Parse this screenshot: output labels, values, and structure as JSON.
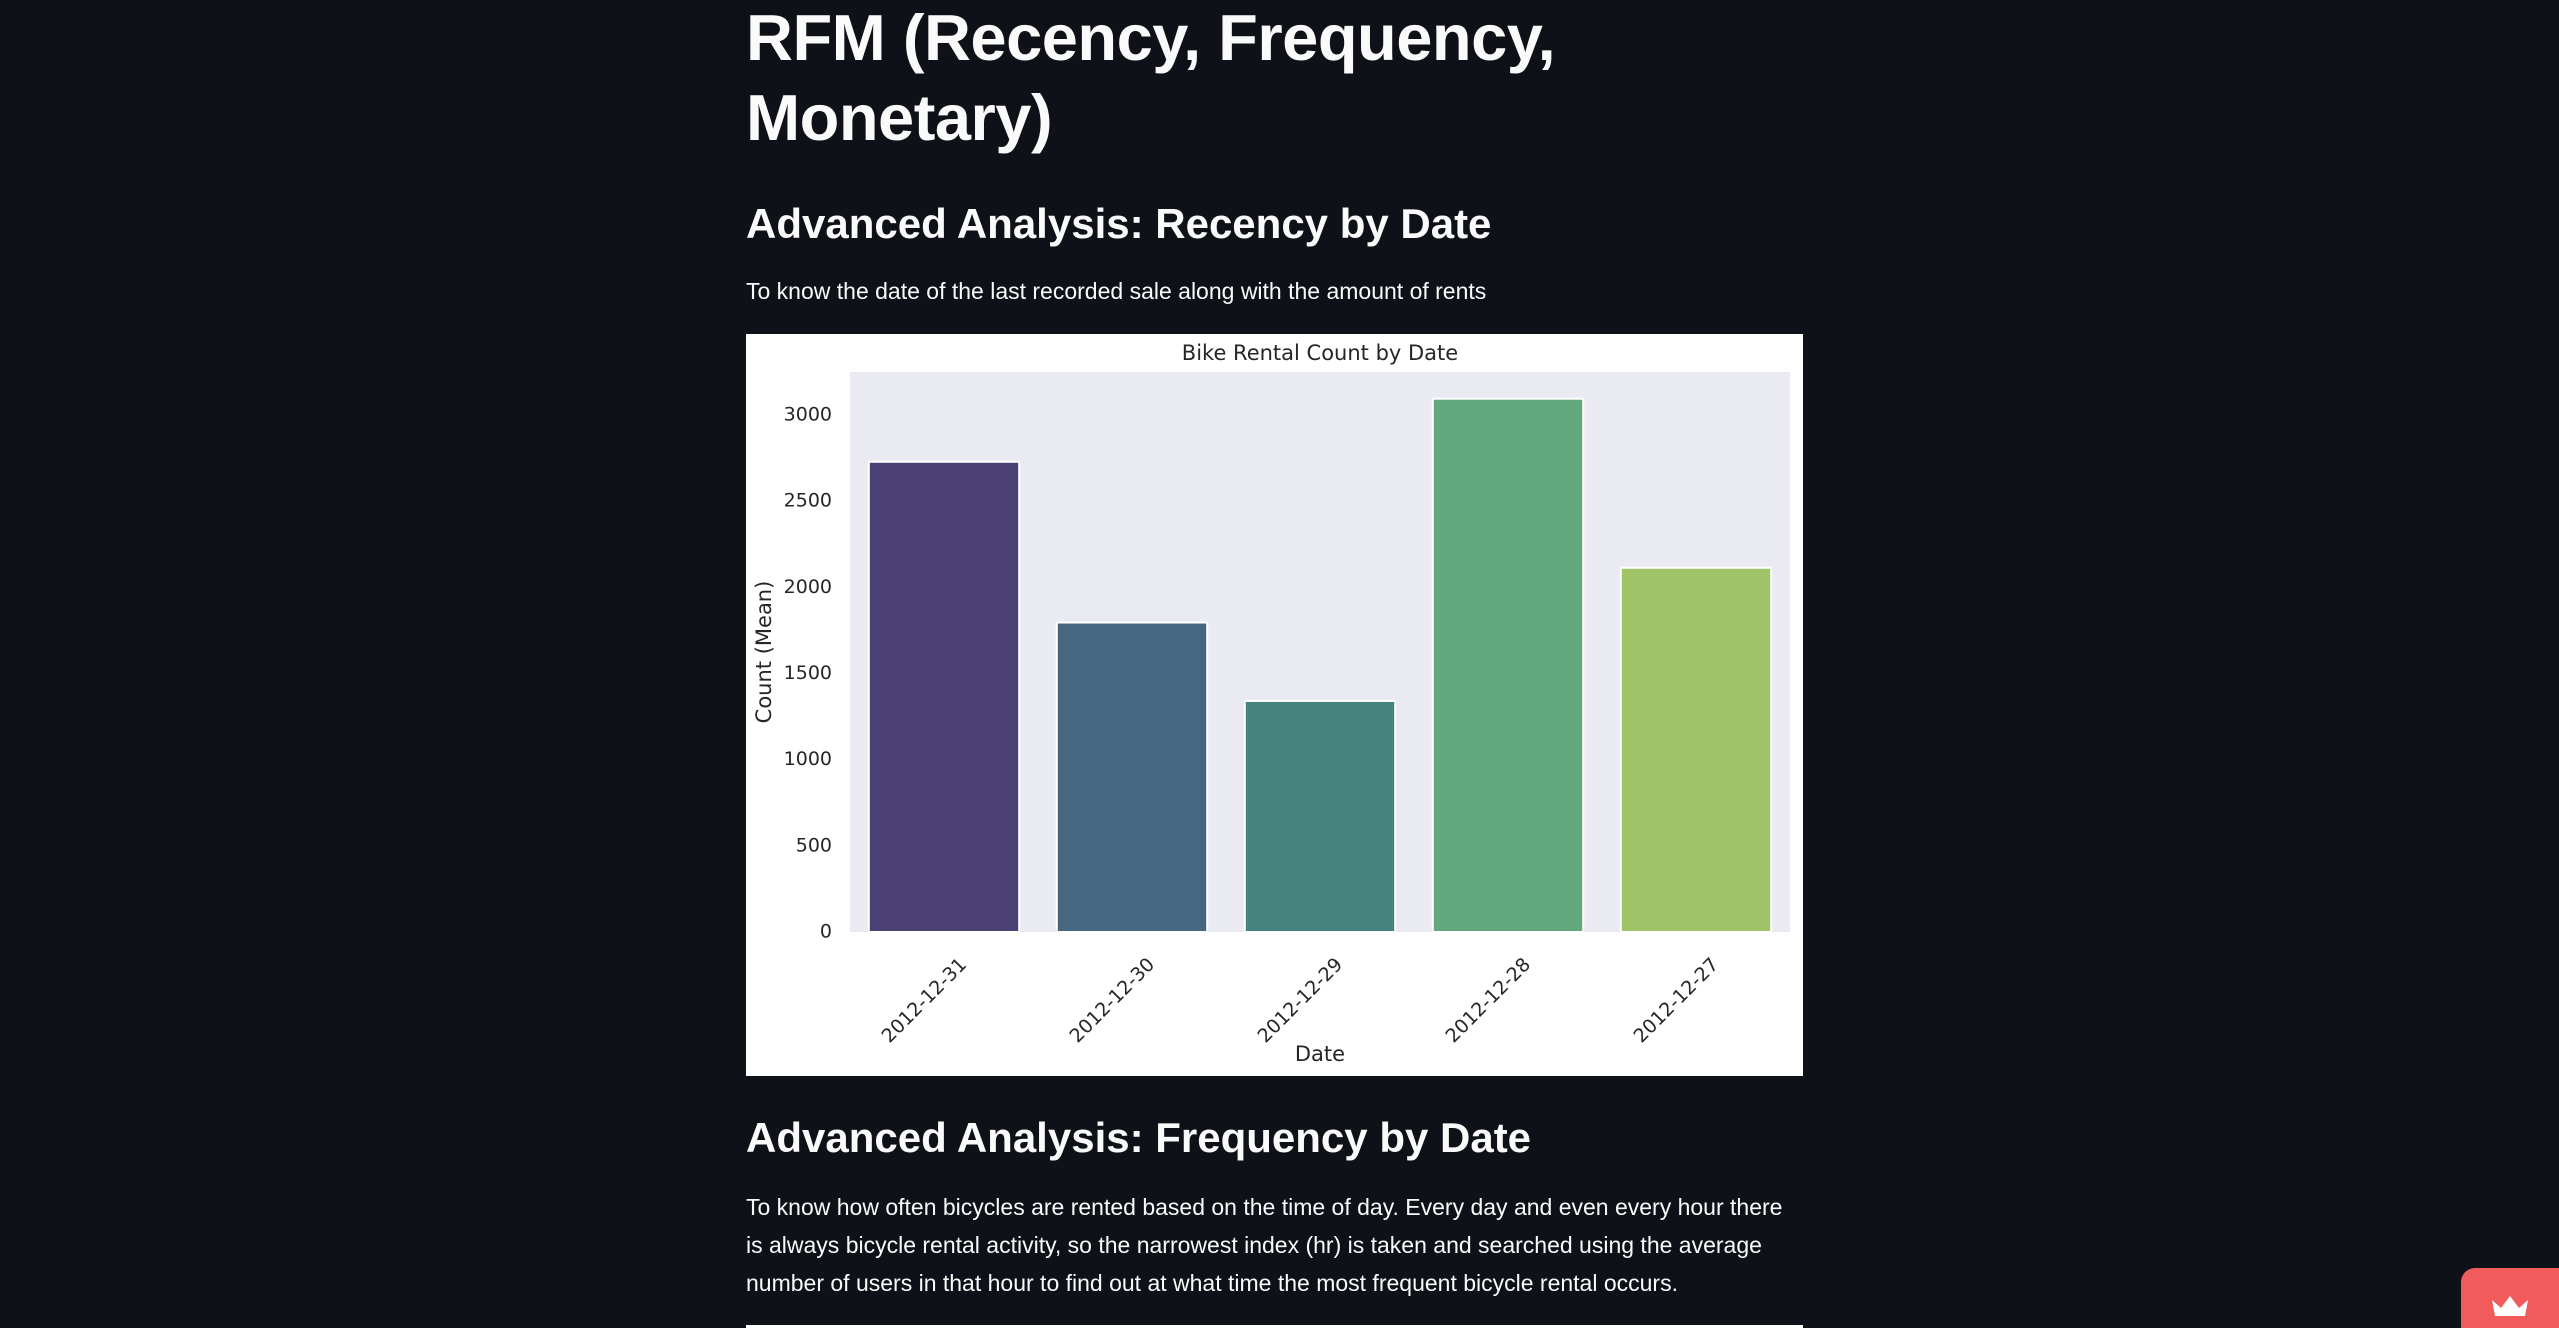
{
  "page": {
    "title": "RFM (Recency, Frequency, Monetary)"
  },
  "recency": {
    "heading": "Advanced Analysis: Recency by Date",
    "description": "To know the date of the last recorded sale along with the amount of rents"
  },
  "frequency": {
    "heading": "Advanced Analysis: Frequency by Date",
    "description": "To know how often bicycles are rented based on the time of day. Every day and even every hour there is always bicycle rental activity, so the narrowest index (hr) is taken and searched using the average number of users in that hour to find out at what time the most frequent bicycle rental occurs."
  },
  "chart_data": {
    "type": "bar",
    "title": "Bike Rental Count by Date",
    "xlabel": "Date",
    "ylabel": "Count (Mean)",
    "categories": [
      "2012-12-31",
      "2012-12-30",
      "2012-12-29",
      "2012-12-28",
      "2012-12-27"
    ],
    "values": [
      2729,
      1796,
      1341,
      3095,
      2114
    ],
    "colors": [
      "#4b4073",
      "#47667f",
      "#46837e",
      "#62a87c",
      "#9ec467"
    ],
    "yticks": [
      0,
      500,
      1000,
      1500,
      2000,
      2500,
      3000
    ],
    "ylim": [
      0,
      3250
    ],
    "grid": false,
    "background": "#eaeaf2"
  },
  "deploy_badge": {
    "icon": "crown-icon"
  }
}
